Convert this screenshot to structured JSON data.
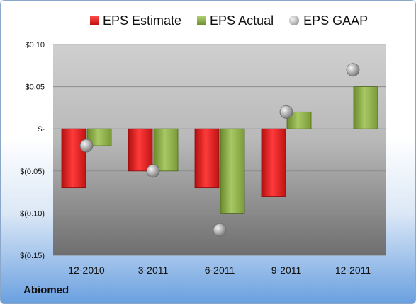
{
  "chart_data": {
    "type": "bar",
    "categories": [
      "12-2010",
      "3-2011",
      "6-2011",
      "9-2011",
      "12-2011"
    ],
    "series": [
      {
        "name": "EPS Estimate",
        "kind": "bar",
        "color": "#e21b23",
        "values": [
          -0.07,
          -0.05,
          -0.07,
          -0.08,
          null
        ]
      },
      {
        "name": "EPS Actual",
        "kind": "bar",
        "color": "#8fb34d",
        "values": [
          -0.02,
          -0.05,
          -0.1,
          0.02,
          0.05
        ]
      },
      {
        "name": "EPS GAAP",
        "kind": "marker",
        "color": "#a8a8a8",
        "values": [
          -0.02,
          -0.05,
          -0.12,
          0.02,
          0.07
        ]
      }
    ],
    "yticks": [
      {
        "value": 0.1,
        "label": "$0.10"
      },
      {
        "value": 0.05,
        "label": "$0.05"
      },
      {
        "value": 0.0,
        "label": "$-"
      },
      {
        "value": -0.05,
        "label": "$(0.05)"
      },
      {
        "value": -0.1,
        "label": "$(0.10)"
      },
      {
        "value": -0.15,
        "label": "$(0.15)"
      }
    ],
    "ylim": [
      -0.15,
      0.1
    ],
    "grid": true,
    "legend_position": "top"
  },
  "footer": {
    "company": "Abiomed"
  }
}
